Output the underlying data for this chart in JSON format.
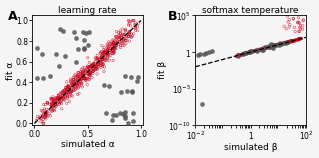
{
  "panel_A": {
    "title": "learning rate",
    "xlabel": "simulated α",
    "ylabel": "fit α",
    "xlim": [
      -0.02,
      1.02
    ],
    "ylim": [
      -0.02,
      1.05
    ],
    "xticks": [
      0,
      0.5,
      1
    ],
    "yticks": [
      0,
      0.2,
      0.4,
      0.6,
      0.8,
      1
    ],
    "scatter_red_color": "#c8001a",
    "scatter_gray_color": "#555555",
    "label": "A"
  },
  "panel_B": {
    "title": "softmax temperature",
    "xlabel": "simulated β",
    "ylabel": "fit β",
    "scatter_red_color": "#c8001a",
    "scatter_gray_color": "#555555",
    "label": "B"
  },
  "background_color": "#f5f5f5",
  "font_size": 6.5,
  "seed": 12345
}
